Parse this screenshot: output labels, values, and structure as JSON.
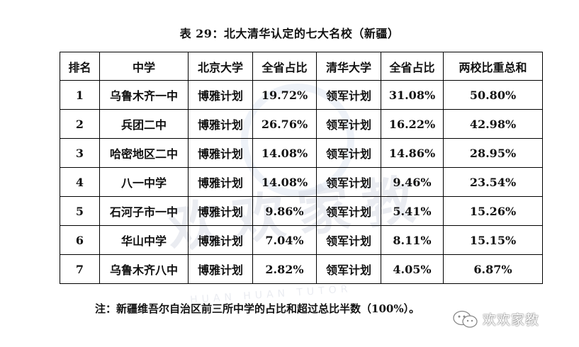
{
  "title": "表 29：北大清华认定的七大名校（新疆）",
  "table": {
    "headers": [
      "排名",
      "中学",
      "北京大学",
      "全省占比",
      "清华大学",
      "全省占比",
      "两校比重总和"
    ],
    "rows": [
      [
        "1",
        "乌鲁木齐一中",
        "博雅计划",
        "19.72%",
        "领军计划",
        "31.08%",
        "50.80%"
      ],
      [
        "2",
        "兵团二中",
        "博雅计划",
        "26.76%",
        "领军计划",
        "16.22%",
        "42.98%"
      ],
      [
        "3",
        "哈密地区二中",
        "博雅计划",
        "14.08%",
        "领军计划",
        "14.86%",
        "28.95%"
      ],
      [
        "4",
        "八一中学",
        "博雅计划",
        "14.08%",
        "领军计划",
        "9.46%",
        "23.54%"
      ],
      [
        "5",
        "石河子市一中",
        "博雅计划",
        "9.86%",
        "领军计划",
        "5.41%",
        "15.26%"
      ],
      [
        "6",
        "华山中学",
        "博雅计划",
        "7.04%",
        "领军计划",
        "8.11%",
        "15.15%"
      ],
      [
        "7",
        "乌鲁木齐八中",
        "博雅计划",
        "2.82%",
        "领军计划",
        "4.05%",
        "6.87%"
      ]
    ]
  },
  "note": "注：新疆维吾尔自治区前三所中学的占比和超过总比半数（100%）。",
  "watermark": {
    "text": "欢欢家教",
    "subtext": "HUAN HUAN TUTOR"
  },
  "brand": {
    "icon": "wechat-icon",
    "text": "欢欢家教"
  }
}
